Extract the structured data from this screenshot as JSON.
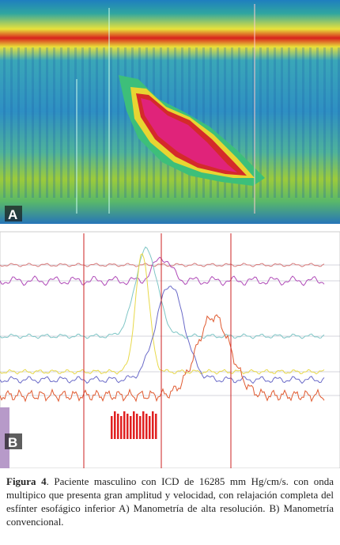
{
  "panels": [
    {
      "label": "A"
    },
    {
      "label": "B"
    }
  ],
  "caption": {
    "label": "Figura 4",
    "text": ". Paciente masculino con ICD de 16285 mm Hg/cm/s. con onda multipico que presenta gran amplitud y velocidad, con relajación completa del esfínter esofágico inferior A) Manometría de alta resolución. B) Manometría convencional."
  }
}
